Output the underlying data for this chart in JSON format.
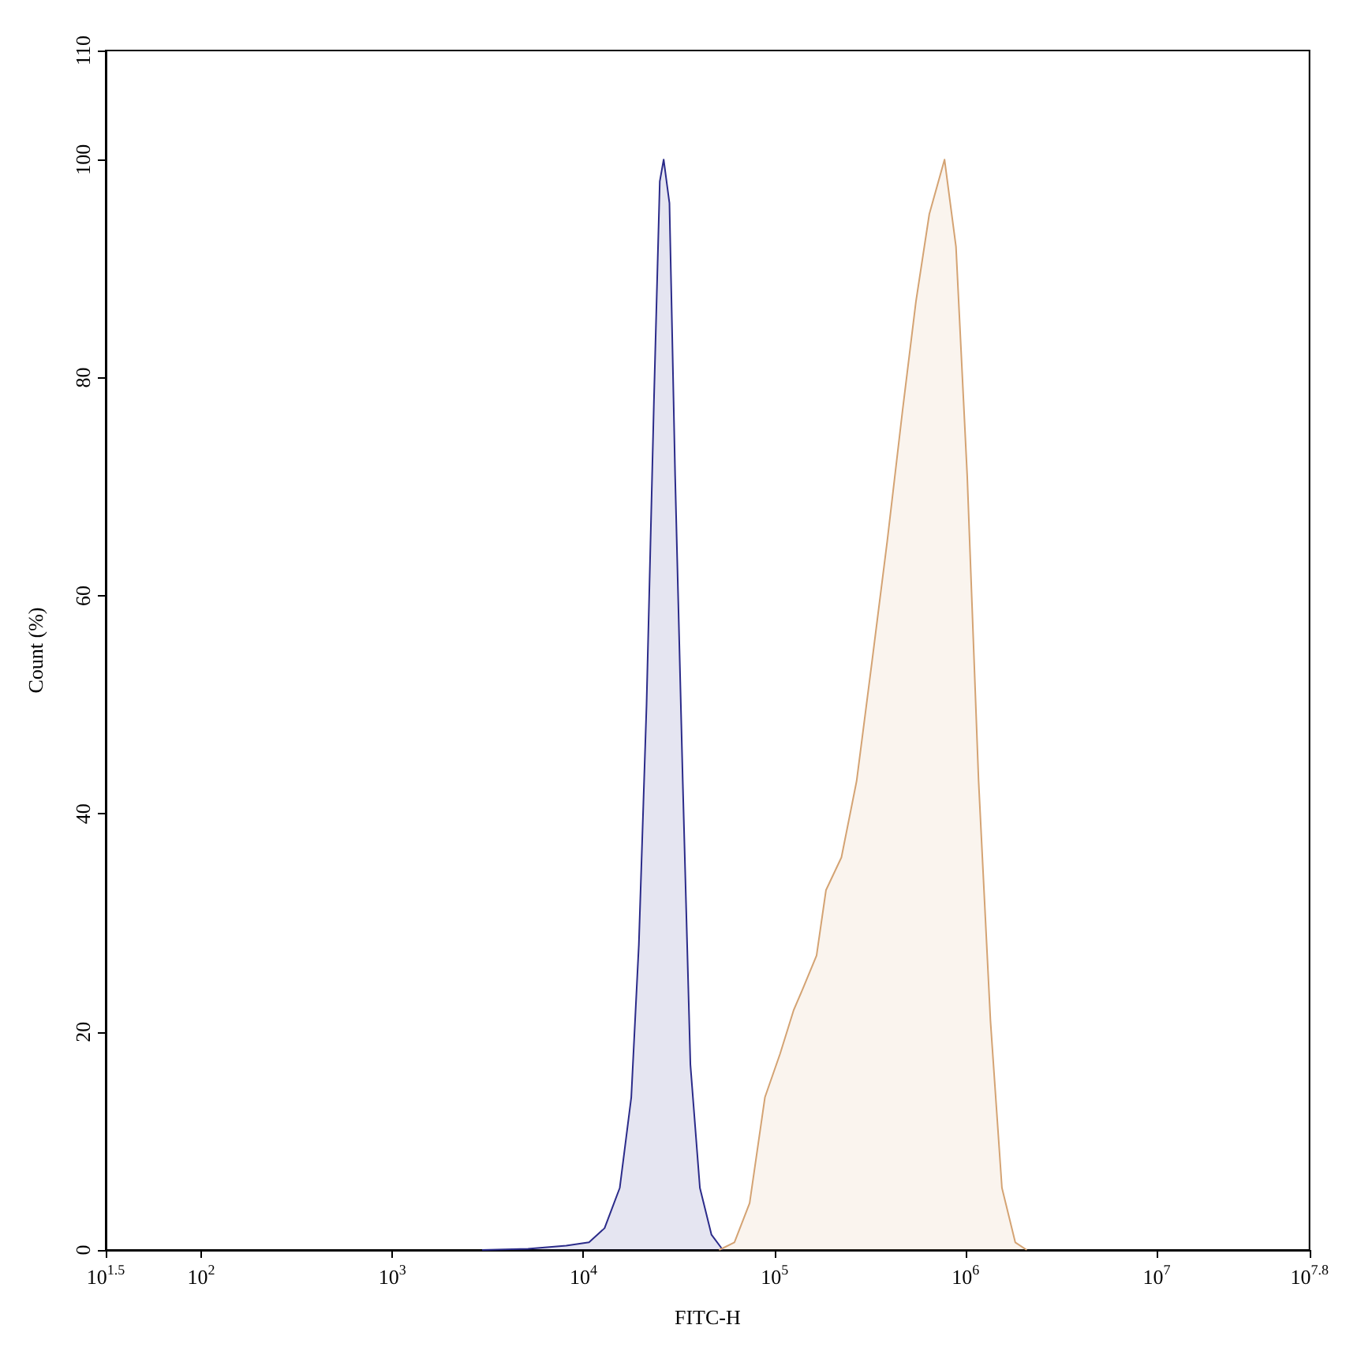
{
  "chart_data": {
    "type": "area",
    "xlabel": "FITC-H",
    "ylabel": "Count (%)",
    "log": "x",
    "xlim": [
      31.62,
      63095734
    ],
    "xticks": [
      {
        "value": 31.62,
        "label": "10$^{1.5}$"
      },
      {
        "value": 100,
        "label": "10$^{2}$"
      },
      {
        "value": 1000,
        "label": "10$^{3}$"
      },
      {
        "value": 10000,
        "label": "10$^{4}$"
      },
      {
        "value": 100000,
        "label": "10$^{5}$"
      },
      {
        "value": 1000000,
        "label": "10$^{6}$"
      },
      {
        "value": 10000000,
        "label": "10$^{7}$"
      },
      {
        "value": 63095734,
        "label": "10$^{7.8}$"
      }
    ],
    "ylim": [
      0,
      110
    ],
    "yticks": [
      0,
      20,
      40,
      60,
      80,
      100,
      110
    ],
    "grid": false,
    "series": [
      {
        "color": "#2b2b8a",
        "x": [
          2950,
          5130,
          8130,
          10700,
          12900,
          15500,
          17800,
          19500,
          21400,
          23400,
          25100,
          26300,
          28200,
          30200,
          33100,
          36300,
          40700,
          46800,
          53700
        ],
        "values": [
          0,
          0.1,
          0.4,
          0.7,
          2,
          5.7,
          14,
          28,
          50,
          78,
          98,
          100,
          96,
          71,
          43,
          17,
          5.7,
          1.4,
          0
        ]
      },
      {
        "color": "#d4a373",
        "x": [
          51300,
          61700,
          74100,
          89100,
          107000,
          126000,
          141000,
          166000,
          186000,
          224000,
          269000,
          324000,
          389000,
          468000,
          550000,
          646000,
          776000,
          891000,
          1020000,
          1170000,
          1350000,
          1550000,
          1820000,
          2090000
        ],
        "values": [
          0,
          0.7,
          4.3,
          14,
          18,
          22,
          24,
          27,
          33,
          36,
          43,
          54,
          65,
          77,
          87,
          95,
          100,
          92,
          71,
          43,
          21,
          5.7,
          0.7,
          0
        ]
      }
    ]
  }
}
